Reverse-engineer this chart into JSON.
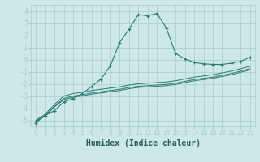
{
  "xlabel": "Humidex (Indice chaleur)",
  "background_color": "#cce8e8",
  "grid_color": "#aacccc",
  "line_color": "#2d7a6e",
  "xlim": [
    -0.5,
    23.5
  ],
  "ylim": [
    -5.5,
    4.5
  ],
  "x": [
    0,
    1,
    2,
    3,
    4,
    5,
    6,
    7,
    8,
    9,
    10,
    11,
    12,
    13,
    14,
    15,
    16,
    17,
    18,
    19,
    20,
    21,
    22,
    23
  ],
  "line1": [
    -5.2,
    -4.6,
    -4.2,
    -3.5,
    -3.2,
    -2.8,
    -2.2,
    -1.6,
    -0.5,
    1.4,
    2.5,
    3.7,
    3.6,
    3.8,
    2.6,
    0.5,
    0.05,
    -0.25,
    -0.35,
    -0.4,
    -0.4,
    -0.3,
    -0.15,
    0.2
  ],
  "line2": [
    -5.0,
    -4.5,
    -3.7,
    -3.0,
    -2.8,
    -2.7,
    -2.55,
    -2.45,
    -2.35,
    -2.25,
    -2.1,
    -2.0,
    -1.95,
    -1.9,
    -1.85,
    -1.75,
    -1.6,
    -1.45,
    -1.35,
    -1.25,
    -1.1,
    -0.95,
    -0.75,
    -0.55
  ],
  "line3": [
    -5.05,
    -4.6,
    -3.85,
    -3.2,
    -3.0,
    -2.9,
    -2.75,
    -2.65,
    -2.55,
    -2.45,
    -2.3,
    -2.2,
    -2.15,
    -2.1,
    -2.05,
    -1.95,
    -1.8,
    -1.65,
    -1.55,
    -1.45,
    -1.3,
    -1.15,
    -0.95,
    -0.75
  ],
  "line4": [
    -5.1,
    -4.65,
    -3.9,
    -3.3,
    -3.1,
    -3.0,
    -2.85,
    -2.75,
    -2.65,
    -2.55,
    -2.4,
    -2.3,
    -2.25,
    -2.2,
    -2.15,
    -2.05,
    -1.9,
    -1.75,
    -1.65,
    -1.55,
    -1.4,
    -1.25,
    -1.05,
    -0.85
  ],
  "yticks": [
    -5,
    -4,
    -3,
    -2,
    -1,
    0,
    1,
    2,
    3,
    4
  ],
  "xticks": [
    0,
    1,
    2,
    3,
    4,
    5,
    6,
    7,
    8,
    9,
    10,
    11,
    12,
    13,
    14,
    15,
    16,
    17,
    18,
    19,
    20,
    21,
    22,
    23
  ]
}
